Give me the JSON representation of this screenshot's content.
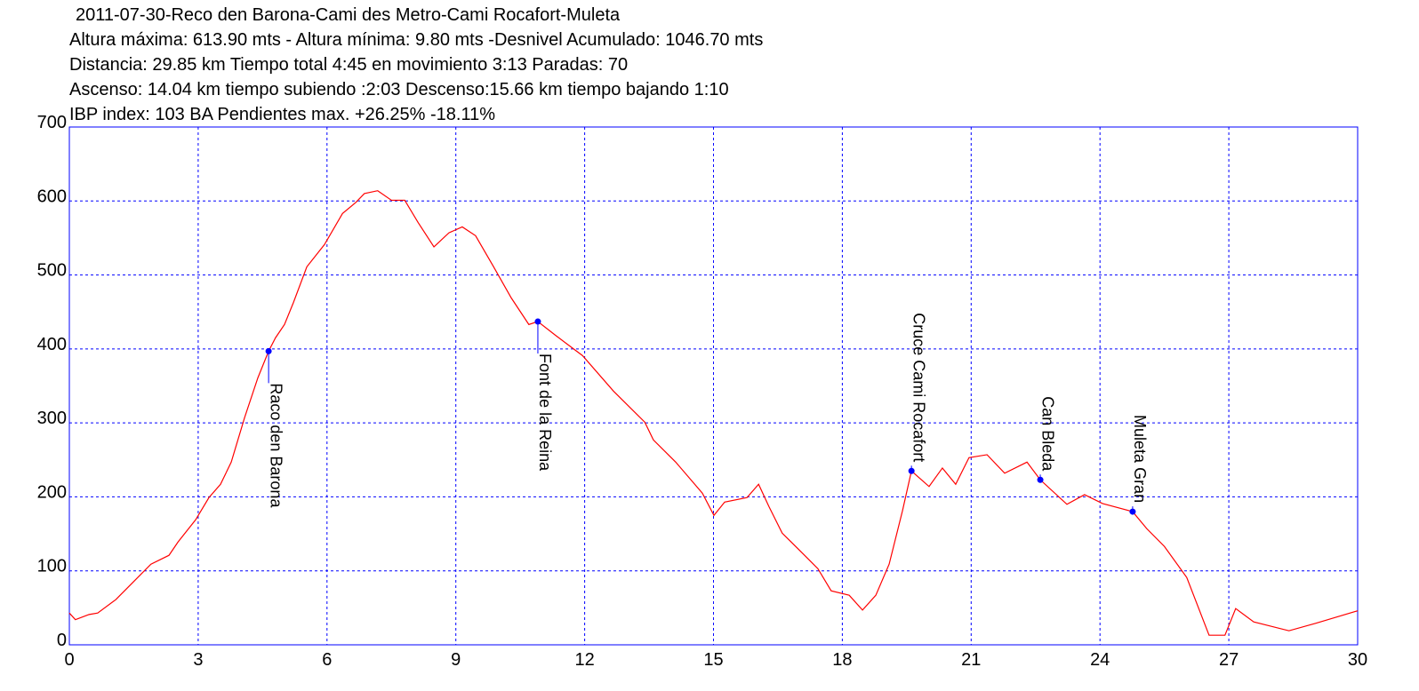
{
  "chart_data": {
    "type": "line",
    "title": "2011-07-30-Reco den Barona-Cami des Metro-Cami Rocafort-Muleta",
    "subtitles": [
      "Altura máxima: 613.90 mts - Altura mínima: 9.80 mts -Desnivel Acumulado: 1046.70 mts",
      "Distancia: 29.85 km  Tiempo total 4:45  en movimiento 3:13 Paradas: 70",
      "Ascenso: 14.04 km  tiempo subiendo :2:03  Descenso:15.66 km tiempo bajando 1:10",
      "IBP index: 103 BA  Pendientes max. +26.25%  -18.11%"
    ],
    "x": [
      0,
      0.14,
      0.46,
      0.66,
      1.08,
      1.49,
      1.9,
      2.32,
      2.53,
      2.94,
      3.25,
      3.52,
      3.77,
      4.08,
      4.39,
      4.64,
      4.8,
      5.01,
      5.22,
      5.53,
      5.94,
      6.36,
      6.67,
      6.87,
      7.18,
      7.5,
      7.81,
      8.12,
      8.49,
      8.84,
      9.15,
      9.46,
      9.88,
      10.29,
      10.7,
      10.91,
      11.33,
      11.95,
      12.67,
      13.4,
      13.6,
      14.12,
      14.74,
      15.01,
      15.26,
      15.78,
      16.05,
      16.29,
      16.6,
      17.12,
      17.43,
      17.74,
      18.16,
      18.47,
      18.78,
      19.09,
      19.4,
      19.61,
      20.02,
      20.33,
      20.64,
      20.95,
      21.37,
      21.78,
      22.3,
      22.61,
      23.23,
      23.64,
      24.06,
      24.76,
      25.09,
      25.5,
      26.02,
      26.54,
      26.91,
      27.16,
      27.58,
      28.4,
      29.02,
      30
    ],
    "values": [
      43,
      34,
      41,
      43,
      61,
      85,
      109,
      121,
      139,
      169,
      199,
      217,
      247,
      307,
      361,
      397,
      415,
      433,
      463,
      511,
      541,
      583,
      598,
      610,
      613.9,
      601,
      601,
      571,
      538,
      557,
      565,
      553,
      511,
      469,
      433,
      437,
      418,
      391,
      343,
      301,
      277,
      247,
      205,
      175,
      193,
      199,
      217,
      187,
      151,
      121,
      103,
      73,
      67,
      47,
      67,
      109,
      181,
      235,
      214,
      239,
      217,
      253,
      257,
      232,
      247,
      223,
      190,
      203,
      191,
      180,
      157,
      133,
      91,
      13,
      13,
      49,
      31,
      19,
      29,
      46
    ],
    "color": "#ff0000",
    "xlim": [
      0,
      30
    ],
    "xticks": [
      0,
      3,
      6,
      9,
      12,
      15,
      18,
      21,
      24,
      27,
      30
    ],
    "ylim": [
      0,
      700
    ],
    "yticks": [
      0,
      100,
      200,
      300,
      400,
      500,
      600,
      700
    ],
    "grid": true,
    "annotations": [
      {
        "label": "Raco den Barona",
        "x": 4.64,
        "y": 397,
        "placement": "below"
      },
      {
        "label": "Font de la Reina",
        "x": 10.91,
        "y": 437,
        "placement": "below"
      },
      {
        "label": "Cruce Cami Rocafort",
        "x": 19.61,
        "y": 235,
        "placement": "above"
      },
      {
        "label": "Can Bleda",
        "x": 22.61,
        "y": 223,
        "placement": "above"
      },
      {
        "label": "Muleta Gran",
        "x": 24.76,
        "y": 180,
        "placement": "above"
      }
    ]
  }
}
